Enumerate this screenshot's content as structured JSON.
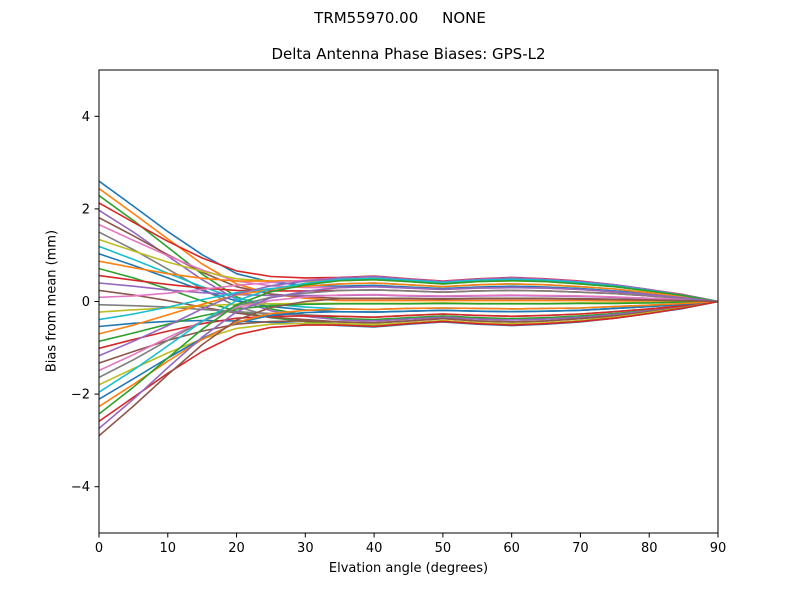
{
  "chart_data": {
    "type": "line",
    "suptitle": "TRM55970.00     NONE",
    "title": "Delta Antenna Phase Biases: GPS-L2",
    "xlabel": "Elvation angle (degrees)",
    "ylabel": "Bias from mean (mm)",
    "xlim": [
      0,
      90
    ],
    "ylim": [
      -5,
      5
    ],
    "xticks": [
      0,
      10,
      20,
      30,
      40,
      50,
      60,
      70,
      80,
      90
    ],
    "xticklabels": [
      "0",
      "10",
      "20",
      "30",
      "40",
      "50",
      "60",
      "70",
      "80",
      "90"
    ],
    "yticks": [
      -4,
      -2,
      0,
      2,
      4
    ],
    "yticklabels": [
      "−4",
      "−2",
      "0",
      "2",
      "4"
    ],
    "grid": false,
    "legend": "none",
    "line_width": 1.6,
    "spine_color": "#000000",
    "background_color": "#ffffff",
    "palette": [
      "#1f77b4",
      "#ff7f0e",
      "#2ca02c",
      "#d62728",
      "#9467bd",
      "#8c564b",
      "#e377c2",
      "#7f7f7f",
      "#bcbd22",
      "#17becf"
    ],
    "x": [
      0,
      5,
      10,
      15,
      20,
      25,
      30,
      35,
      40,
      45,
      50,
      55,
      60,
      65,
      70,
      75,
      80,
      85,
      90
    ],
    "series": [
      {
        "color": "#1f77b4",
        "values": [
          2.6,
          2.06,
          1.51,
          1.01,
          0.6,
          0.42,
          0.35,
          0.33,
          0.35,
          0.31,
          0.28,
          0.31,
          0.33,
          0.31,
          0.28,
          0.23,
          0.17,
          0.09,
          0
        ]
      },
      {
        "color": "#ff7f0e",
        "values": [
          2.44,
          1.9,
          1.35,
          0.81,
          0.38,
          0.16,
          0.07,
          0.02,
          0.02,
          0.02,
          0.02,
          0.02,
          0.02,
          0.02,
          0.02,
          0.01,
          0.01,
          0.01,
          0
        ]
      },
      {
        "color": "#2ca02c",
        "values": [
          2.29,
          1.75,
          1.17,
          0.59,
          0.1,
          -0.16,
          -0.29,
          -0.37,
          -0.39,
          -0.35,
          -0.31,
          -0.35,
          -0.37,
          -0.35,
          -0.31,
          -0.26,
          -0.19,
          -0.1,
          0
        ]
      },
      {
        "color": "#d62728",
        "values": [
          2.13,
          1.71,
          1.3,
          0.94,
          0.66,
          0.54,
          0.51,
          0.52,
          0.55,
          0.49,
          0.44,
          0.49,
          0.52,
          0.49,
          0.44,
          0.36,
          0.26,
          0.15,
          0
        ]
      },
      {
        "color": "#9467bd",
        "values": [
          1.97,
          1.5,
          0.98,
          0.47,
          0.04,
          -0.2,
          -0.32,
          -0.4,
          -0.42,
          -0.38,
          -0.34,
          -0.38,
          -0.4,
          -0.38,
          -0.34,
          -0.28,
          -0.2,
          -0.11,
          0
        ]
      },
      {
        "color": "#8c564b",
        "values": [
          1.81,
          1.42,
          1.01,
          0.63,
          0.32,
          0.16,
          0.1,
          0.07,
          0.07,
          0.07,
          0.06,
          0.07,
          0.07,
          0.07,
          0.06,
          0.05,
          0.04,
          0.02,
          0
        ]
      },
      {
        "color": "#e377c2",
        "values": [
          1.66,
          1.32,
          0.99,
          0.68,
          0.44,
          0.34,
          0.3,
          0.3,
          0.32,
          0.29,
          0.26,
          0.29,
          0.3,
          0.29,
          0.26,
          0.21,
          0.15,
          0.08,
          0
        ]
      },
      {
        "color": "#7f7f7f",
        "values": [
          1.5,
          1.12,
          0.7,
          0.27,
          -0.11,
          -0.32,
          -0.43,
          -0.51,
          -0.54,
          -0.48,
          -0.43,
          -0.48,
          -0.51,
          -0.48,
          -0.43,
          -0.36,
          -0.26,
          -0.14,
          0
        ]
      },
      {
        "color": "#bcbd22",
        "values": [
          1.34,
          1.09,
          0.85,
          0.65,
          0.49,
          0.44,
          0.43,
          0.45,
          0.47,
          0.43,
          0.38,
          0.43,
          0.45,
          0.43,
          0.38,
          0.32,
          0.23,
          0.13,
          0
        ]
      },
      {
        "color": "#17becf",
        "values": [
          1.19,
          0.91,
          0.61,
          0.32,
          0.07,
          -0.06,
          -0.12,
          -0.16,
          -0.17,
          -0.15,
          -0.14,
          -0.15,
          -0.16,
          -0.15,
          -0.14,
          -0.11,
          -0.08,
          -0.04,
          0
        ]
      },
      {
        "color": "#1f77b4",
        "values": [
          1.03,
          0.78,
          0.51,
          0.24,
          0.01,
          -0.11,
          -0.18,
          -0.22,
          -0.23,
          -0.21,
          -0.19,
          -0.21,
          -0.22,
          -0.21,
          -0.19,
          -0.15,
          -0.11,
          -0.06,
          0
        ]
      },
      {
        "color": "#ff7f0e",
        "values": [
          0.87,
          0.73,
          0.6,
          0.5,
          0.44,
          0.44,
          0.45,
          0.48,
          0.5,
          0.46,
          0.41,
          0.46,
          0.48,
          0.46,
          0.41,
          0.34,
          0.24,
          0.13,
          0
        ]
      },
      {
        "color": "#2ca02c",
        "values": [
          0.71,
          0.51,
          0.27,
          0.01,
          -0.21,
          -0.35,
          -0.43,
          -0.49,
          -0.51,
          -0.47,
          -0.42,
          -0.47,
          -0.49,
          -0.47,
          -0.42,
          -0.34,
          -0.25,
          -0.14,
          0
        ]
      },
      {
        "color": "#d62728",
        "values": [
          0.56,
          0.46,
          0.37,
          0.29,
          0.24,
          0.23,
          0.23,
          0.24,
          0.25,
          0.23,
          0.2,
          0.23,
          0.24,
          0.23,
          0.2,
          0.17,
          0.12,
          0.07,
          0
        ]
      },
      {
        "color": "#9467bd",
        "values": [
          0.4,
          0.33,
          0.25,
          0.19,
          0.15,
          0.13,
          0.13,
          0.13,
          0.14,
          0.12,
          0.11,
          0.12,
          0.13,
          0.12,
          0.11,
          0.09,
          0.07,
          0.04,
          0
        ]
      },
      {
        "color": "#8c564b",
        "values": [
          0.24,
          0.14,
          0.02,
          -0.12,
          -0.25,
          -0.34,
          -0.39,
          -0.44,
          -0.46,
          -0.42,
          -0.37,
          -0.42,
          -0.44,
          -0.42,
          -0.37,
          -0.31,
          -0.22,
          -0.12,
          0
        ]
      },
      {
        "color": "#e377c2",
        "values": [
          0.09,
          0.12,
          0.18,
          0.26,
          0.35,
          0.41,
          0.46,
          0.51,
          0.54,
          0.48,
          0.43,
          0.48,
          0.51,
          0.48,
          0.43,
          0.36,
          0.26,
          0.14,
          0
        ]
      },
      {
        "color": "#7f7f7f",
        "values": [
          -0.07,
          -0.09,
          -0.12,
          -0.17,
          -0.22,
          -0.26,
          -0.29,
          -0.32,
          -0.34,
          -0.3,
          -0.27,
          -0.3,
          -0.32,
          -0.3,
          -0.27,
          -0.22,
          -0.16,
          -0.09,
          0
        ]
      },
      {
        "color": "#bcbd22",
        "values": [
          -0.23,
          -0.18,
          -0.14,
          -0.09,
          -0.06,
          -0.05,
          -0.04,
          -0.04,
          -0.04,
          -0.04,
          -0.03,
          -0.04,
          -0.04,
          -0.04,
          -0.03,
          -0.03,
          -0.02,
          -0.01,
          0
        ]
      },
      {
        "color": "#17becf",
        "values": [
          -0.39,
          -0.27,
          -0.12,
          0.04,
          0.19,
          0.28,
          0.33,
          0.38,
          0.4,
          0.36,
          0.32,
          0.36,
          0.38,
          0.36,
          0.32,
          0.27,
          0.19,
          0.11,
          0
        ]
      },
      {
        "color": "#1f77b4",
        "values": [
          -0.54,
          -0.47,
          -0.43,
          -0.41,
          -0.42,
          -0.45,
          -0.48,
          -0.52,
          -0.55,
          -0.49,
          -0.44,
          -0.49,
          -0.52,
          -0.49,
          -0.44,
          -0.36,
          -0.26,
          -0.15,
          0
        ]
      },
      {
        "color": "#ff7f0e",
        "values": [
          -0.7,
          -0.51,
          -0.29,
          -0.06,
          0.14,
          0.26,
          0.33,
          0.38,
          0.4,
          0.36,
          0.32,
          0.36,
          0.38,
          0.36,
          0.32,
          0.27,
          0.19,
          0.11,
          0
        ]
      },
      {
        "color": "#2ca02c",
        "values": [
          -0.86,
          -0.68,
          -0.49,
          -0.31,
          -0.16,
          -0.09,
          -0.06,
          -0.05,
          -0.05,
          -0.05,
          -0.04,
          -0.05,
          -0.05,
          -0.05,
          -0.04,
          -0.04,
          -0.03,
          -0.01,
          0
        ]
      },
      {
        "color": "#d62728",
        "values": [
          -1.01,
          -0.82,
          -0.64,
          -0.48,
          -0.36,
          -0.32,
          -0.31,
          -0.32,
          -0.34,
          -0.3,
          -0.27,
          -0.3,
          -0.32,
          -0.3,
          -0.27,
          -0.22,
          -0.16,
          -0.09,
          0
        ]
      },
      {
        "color": "#9467bd",
        "values": [
          -1.17,
          -0.86,
          -0.52,
          -0.16,
          0.16,
          0.34,
          0.44,
          0.51,
          0.54,
          0.48,
          0.43,
          0.48,
          0.51,
          0.48,
          0.43,
          0.36,
          0.26,
          0.14,
          0
        ]
      },
      {
        "color": "#8c564b",
        "values": [
          -1.33,
          -1.08,
          -0.84,
          -0.64,
          -0.49,
          -0.43,
          -0.42,
          -0.44,
          -0.46,
          -0.42,
          -0.37,
          -0.42,
          -0.44,
          -0.42,
          -0.37,
          -0.31,
          -0.22,
          -0.12,
          0
        ]
      },
      {
        "color": "#e377c2",
        "values": [
          -1.49,
          -1.15,
          -0.78,
          -0.43,
          -0.13,
          0.02,
          0.1,
          0.14,
          0.15,
          0.13,
          0.12,
          0.13,
          0.14,
          0.13,
          0.12,
          0.1,
          0.07,
          0.04,
          0
        ]
      },
      {
        "color": "#7f7f7f",
        "values": [
          -1.64,
          -1.26,
          -0.84,
          -0.43,
          -0.09,
          0.09,
          0.18,
          0.24,
          0.25,
          0.23,
          0.2,
          0.23,
          0.24,
          0.23,
          0.2,
          0.17,
          0.12,
          0.07,
          0
        ]
      },
      {
        "color": "#bcbd22",
        "values": [
          -1.8,
          -1.45,
          -1.11,
          -0.81,
          -0.58,
          -0.49,
          -0.47,
          -0.48,
          -0.5,
          -0.46,
          -0.41,
          -0.46,
          -0.48,
          -0.46,
          -0.41,
          -0.34,
          -0.24,
          -0.13,
          0
        ]
      },
      {
        "color": "#17becf",
        "values": [
          -1.96,
          -1.48,
          -0.96,
          -0.43,
          0.02,
          0.27,
          0.39,
          0.48,
          0.5,
          0.46,
          0.41,
          0.46,
          0.48,
          0.46,
          0.41,
          0.34,
          0.24,
          0.13,
          0
        ]
      },
      {
        "color": "#1f77b4",
        "values": [
          -2.11,
          -1.67,
          -1.22,
          -0.8,
          -0.46,
          -0.3,
          -0.24,
          -0.22,
          -0.23,
          -0.21,
          -0.19,
          -0.21,
          -0.22,
          -0.21,
          -0.19,
          -0.15,
          -0.11,
          -0.06,
          0
        ]
      },
      {
        "color": "#ff7f0e",
        "values": [
          -2.27,
          -1.79,
          -1.29,
          -0.82,
          -0.45,
          -0.26,
          -0.19,
          -0.16,
          -0.17,
          -0.15,
          -0.14,
          -0.15,
          -0.16,
          -0.15,
          -0.14,
          -0.11,
          -0.08,
          -0.04,
          0
        ]
      },
      {
        "color": "#2ca02c",
        "values": [
          -2.43,
          -1.85,
          -1.22,
          -0.6,
          -0.07,
          0.21,
          0.36,
          0.45,
          0.47,
          0.43,
          0.38,
          0.43,
          0.45,
          0.43,
          0.38,
          0.32,
          0.23,
          0.13,
          0
        ]
      },
      {
        "color": "#d62728",
        "values": [
          -2.59,
          -2.07,
          -1.55,
          -1.08,
          -0.72,
          -0.56,
          -0.51,
          -0.51,
          -0.54,
          -0.48,
          -0.43,
          -0.48,
          -0.51,
          -0.48,
          -0.43,
          -0.36,
          -0.26,
          -0.14,
          0
        ]
      },
      {
        "color": "#9467bd",
        "values": [
          -2.74,
          -2.11,
          -1.43,
          -0.77,
          -0.22,
          0.08,
          0.22,
          0.3,
          0.32,
          0.29,
          0.26,
          0.29,
          0.3,
          0.29,
          0.26,
          0.21,
          0.15,
          0.08,
          0
        ]
      },
      {
        "color": "#8c564b",
        "values": [
          -2.9,
          -2.26,
          -1.58,
          -0.93,
          -0.4,
          -0.13,
          0.0,
          0.06,
          0.06,
          0.06,
          0.05,
          0.06,
          0.06,
          0.06,
          0.05,
          0.04,
          0.03,
          0.02,
          0
        ]
      }
    ]
  }
}
